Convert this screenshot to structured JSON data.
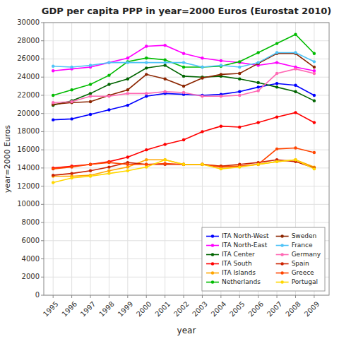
{
  "chart_data": {
    "type": "line",
    "title": "GDP per capita PPP in year=2000 Euros (Eurostat 2010)",
    "xlabel": "year",
    "ylabel": "year=2000 Euros",
    "x": [
      1995,
      1996,
      1997,
      1998,
      1999,
      2000,
      2001,
      2002,
      2003,
      2004,
      2005,
      2006,
      2007,
      2008,
      2009
    ],
    "series": [
      {
        "name": "ITA North-West",
        "color": "#0000FF",
        "values": [
          19300,
          19400,
          19900,
          20400,
          20900,
          21900,
          22200,
          22100,
          22000,
          22100,
          22400,
          22900,
          23300,
          23100,
          22000
        ]
      },
      {
        "name": "ITA North-East",
        "color": "#FF00FF",
        "values": [
          24700,
          24900,
          25100,
          25600,
          26100,
          27400,
          27500,
          26600,
          26100,
          25800,
          25600,
          25300,
          25600,
          25100,
          24700
        ]
      },
      {
        "name": "ITA Center",
        "color": "#006400",
        "values": [
          20900,
          21400,
          22200,
          23200,
          23800,
          25000,
          25300,
          24100,
          24000,
          24100,
          23800,
          23400,
          22900,
          22400,
          21400
        ]
      },
      {
        "name": "ITA South",
        "color": "#FF0000",
        "values": [
          14000,
          14200,
          14400,
          14700,
          15200,
          16000,
          16600,
          17100,
          18000,
          18600,
          18500,
          19000,
          19600,
          20100,
          19000
        ]
      },
      {
        "name": "ITA Islands",
        "color": "#FFA500",
        "values": [
          13100,
          13100,
          13200,
          13700,
          14100,
          14900,
          14900,
          14400,
          14400,
          14200,
          14200,
          14400,
          14700,
          14900,
          14100
        ]
      },
      {
        "name": "Netherlands",
        "color": "#00BB00",
        "values": [
          22000,
          22600,
          23200,
          24200,
          25700,
          26100,
          25900,
          25100,
          25100,
          25200,
          25700,
          26700,
          27700,
          28700,
          26600
        ]
      },
      {
        "name": "Sweden",
        "color": "#8B2500",
        "values": [
          21000,
          21200,
          21300,
          22000,
          22600,
          24300,
          23800,
          23000,
          23900,
          24300,
          24400,
          25500,
          26600,
          26600,
          25100
        ]
      },
      {
        "name": "France",
        "color": "#4FC3F7",
        "values": [
          25200,
          25100,
          25300,
          25600,
          25600,
          25600,
          25600,
          25600,
          25100,
          25300,
          25100,
          25600,
          26700,
          26700,
          25700
        ]
      },
      {
        "name": "Germany",
        "color": "#FF69B4",
        "values": [
          21200,
          21300,
          21900,
          21900,
          22200,
          22200,
          22400,
          22300,
          21900,
          21900,
          22000,
          22500,
          24400,
          24900,
          24400
        ]
      },
      {
        "name": "Spain",
        "color": "#CC2200",
        "values": [
          13200,
          13400,
          13700,
          14100,
          14600,
          14400,
          14400,
          14400,
          14400,
          14200,
          14400,
          14600,
          14900,
          14700,
          14000
        ]
      },
      {
        "name": "Greece",
        "color": "#FF4500",
        "values": [
          13900,
          14100,
          14400,
          14600,
          14400,
          14400,
          14500,
          14400,
          14400,
          14100,
          14200,
          14400,
          16100,
          16200,
          15700
        ]
      },
      {
        "name": "Portugal",
        "color": "#FFD700",
        "values": [
          12400,
          12900,
          13100,
          13400,
          13700,
          14100,
          14900,
          14400,
          14400,
          13900,
          14100,
          14400,
          14700,
          14900,
          13900
        ]
      }
    ],
    "xlim": [
      1994.5,
      2009.8
    ],
    "xticks": [
      1995,
      1996,
      1997,
      1998,
      1999,
      2000,
      2001,
      2002,
      2003,
      2004,
      2005,
      2006,
      2007,
      2008,
      2009
    ],
    "ylim": [
      0,
      30000
    ],
    "yticks": [
      0,
      2000,
      4000,
      6000,
      8000,
      10000,
      12000,
      14000,
      16000,
      18000,
      20000,
      22000,
      24000,
      26000,
      28000,
      30000
    ],
    "grid": true,
    "legend": "lower right",
    "marker": "circle"
  }
}
